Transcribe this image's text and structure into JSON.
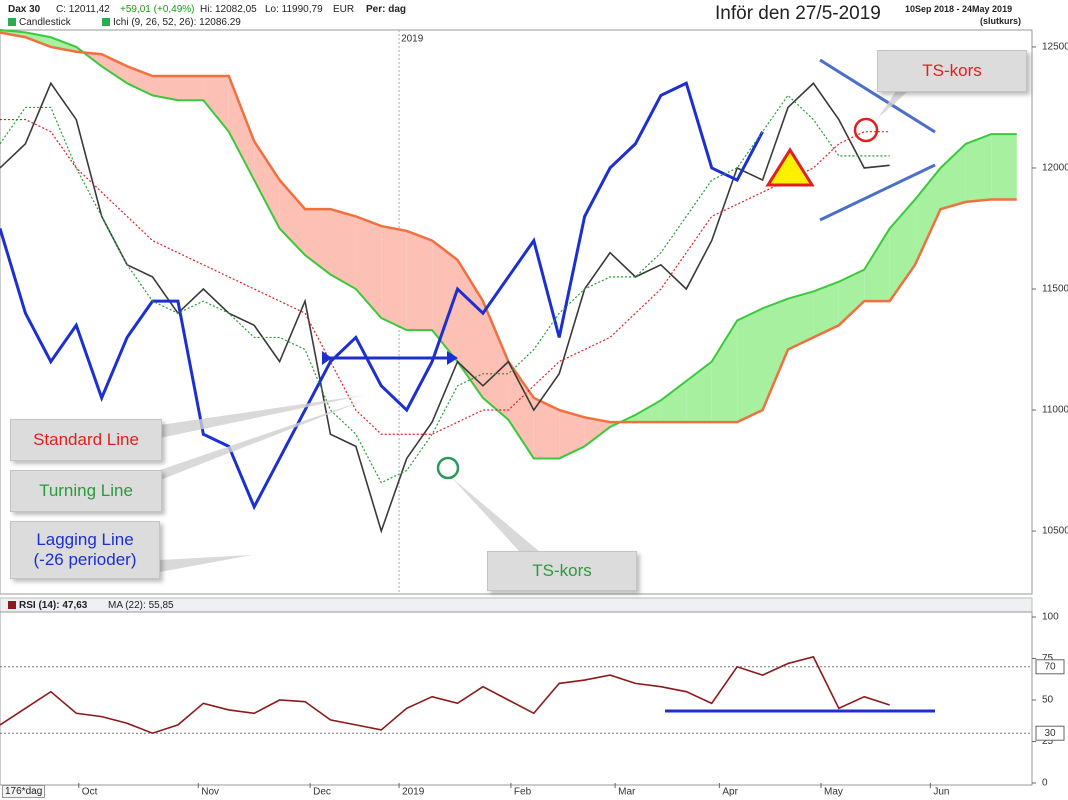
{
  "header": {
    "symbol": "Dax 30",
    "close": "C: 12011,42",
    "change": "+59,01 (+0,49%)",
    "high": "Hi: 12082,05",
    "low": "Lo: 11990,79",
    "currency": "EUR",
    "period": "Per: dag",
    "indicator": "Ichi (9, 26, 52, 26): 12086.29",
    "title": "Inför den 27/5-2019",
    "range": "10Sep 2018 - 24May 2019",
    "range_note": "(slutkurs)",
    "zoom": "176*dag"
  },
  "annotations": {
    "ts_kors_top": "TS-kors",
    "ts_kors_bottom": "TS-kors"
  },
  "chart_data": [
    {
      "type": "line",
      "x": [
        0,
        1,
        2,
        3,
        4,
        5,
        6,
        7,
        8,
        9,
        10,
        11,
        12,
        13,
        14,
        15,
        16,
        17,
        18,
        19,
        20,
        21,
        22,
        23,
        24,
        25,
        26,
        27,
        28,
        29,
        30,
        31,
        32,
        33,
        34,
        35,
        36,
        37,
        38,
        39,
        40
      ],
      "xlim": [
        0,
        40.6
      ],
      "ylim": [
        10240,
        12570
      ],
      "yticks": [
        10500,
        11000,
        11500,
        12000,
        12500
      ],
      "xticks": [
        {
          "value": 15.7,
          "label": "2019"
        }
      ],
      "series": [
        {
          "name": "Candlestick",
          "color": "#3a3a3a",
          "width": 1.6,
          "dash": false,
          "values": [
            12000,
            12100,
            12350,
            12200,
            11800,
            11600,
            11550,
            11400,
            11500,
            11400,
            11350,
            11200,
            11450,
            10900,
            10850,
            10500,
            10800,
            10950,
            11200,
            11100,
            11200,
            11000,
            11150,
            11500,
            11650,
            11550,
            11600,
            11500,
            11700,
            12000,
            11950,
            12250,
            12350,
            12200,
            12000,
            12011,
            null,
            null,
            null,
            null,
            null
          ]
        },
        {
          "name": "Lagging Line (-26 perioder)",
          "color": "#1c2fd0",
          "width": 3,
          "dash": false,
          "values": [
            11750,
            11400,
            11200,
            11350,
            11050,
            11300,
            11450,
            11450,
            10900,
            10850,
            10600,
            10800,
            11000,
            11200,
            11300,
            11100,
            11000,
            11200,
            11500,
            11400,
            11550,
            11700,
            11300,
            11800,
            12000,
            12100,
            12300,
            12350,
            12000,
            11950,
            12150,
            null,
            null,
            null,
            null,
            null,
            null,
            null,
            null,
            null,
            null
          ]
        },
        {
          "name": "Standard Line",
          "color": "#e02020",
          "width": 1.2,
          "dash": true,
          "values": [
            12200,
            12200,
            12150,
            12000,
            11900,
            11800,
            11700,
            11650,
            11600,
            11550,
            11500,
            11450,
            11400,
            11200,
            11000,
            10900,
            10900,
            10900,
            10950,
            11000,
            11000,
            11100,
            11200,
            11250,
            11300,
            11400,
            11500,
            11650,
            11800,
            11850,
            11900,
            11950,
            12000,
            12100,
            12150,
            12150,
            null,
            null,
            null,
            null,
            null
          ]
        },
        {
          "name": "Turning Line",
          "color": "#2a9a3a",
          "width": 1.2,
          "dash": true,
          "values": [
            12100,
            12250,
            12250,
            12000,
            11800,
            11600,
            11450,
            11400,
            11450,
            11400,
            11300,
            11300,
            11250,
            11000,
            10900,
            10700,
            10750,
            10900,
            11100,
            11150,
            11150,
            11250,
            11400,
            11500,
            11550,
            11550,
            11650,
            11800,
            11950,
            12000,
            12150,
            12300,
            12200,
            12050,
            12050,
            12050,
            null,
            null,
            null,
            null,
            null
          ]
        }
      ],
      "cloud": {
        "span_a_color": "#3cc83c",
        "span_b_color": "#f07040",
        "up_color": "#a6f0a0",
        "down_color": "#fcc0b4",
        "span_a": [
          12570,
          12560,
          12540,
          12500,
          12420,
          12350,
          12300,
          12280,
          12280,
          12150,
          11950,
          11750,
          11640,
          11560,
          11500,
          11380,
          11330,
          11330,
          11200,
          11050,
          10960,
          10800,
          10800,
          10850,
          10930,
          10980,
          11040,
          11120,
          11200,
          11370,
          11420,
          11460,
          11490,
          11530,
          11580,
          11750,
          11870,
          12000,
          12100,
          12140,
          12140
        ],
        "span_b": [
          12560,
          12540,
          12500,
          12480,
          12470,
          12420,
          12380,
          12380,
          12380,
          12380,
          12110,
          11950,
          11830,
          11830,
          11800,
          11760,
          11740,
          11700,
          11620,
          11450,
          11200,
          11050,
          11000,
          10970,
          10950,
          10950,
          10950,
          10950,
          10950,
          10950,
          11000,
          11250,
          11300,
          11350,
          11450,
          11450,
          11600,
          11830,
          11860,
          11870,
          11870
        ]
      }
    },
    {
      "type": "line",
      "x": [
        0,
        1,
        2,
        3,
        4,
        5,
        6,
        7,
        8,
        9,
        10,
        11,
        12,
        13,
        14,
        15,
        16,
        17,
        18,
        19,
        20,
        21,
        22,
        23,
        24,
        25,
        26,
        27,
        28,
        29,
        30,
        31,
        32,
        33,
        34,
        35,
        36,
        37,
        38,
        39,
        40
      ],
      "xlim": [
        0,
        40.6
      ],
      "ylim": [
        0,
        100
      ],
      "yticks": [
        0,
        25,
        50,
        75,
        100
      ],
      "ref_lines": [
        70,
        30
      ],
      "ma_label": "MA (22): 55,85",
      "xticks": [
        {
          "value": 3.1,
          "label": "Oct"
        },
        {
          "value": 7.8,
          "label": "Nov"
        },
        {
          "value": 12.2,
          "label": "Dec"
        },
        {
          "value": 15.7,
          "label": "2019"
        },
        {
          "value": 20.1,
          "label": "Feb"
        },
        {
          "value": 24.2,
          "label": "Mar"
        },
        {
          "value": 28.3,
          "label": "Apr"
        },
        {
          "value": 32.3,
          "label": "May"
        },
        {
          "value": 36.6,
          "label": "Jun"
        }
      ],
      "series": [
        {
          "name": "RSI (14): 47,63",
          "color": "#8b1a1a",
          "width": 1.6,
          "dash": false,
          "values": [
            35,
            45,
            55,
            42,
            40,
            36,
            30,
            35,
            48,
            44,
            42,
            50,
            49,
            38,
            35,
            32,
            45,
            52,
            48,
            58,
            50,
            42,
            60,
            62,
            65,
            60,
            58,
            55,
            48,
            70,
            65,
            72,
            76,
            45,
            52,
            47,
            null,
            null,
            null,
            null,
            null
          ]
        }
      ]
    }
  ]
}
